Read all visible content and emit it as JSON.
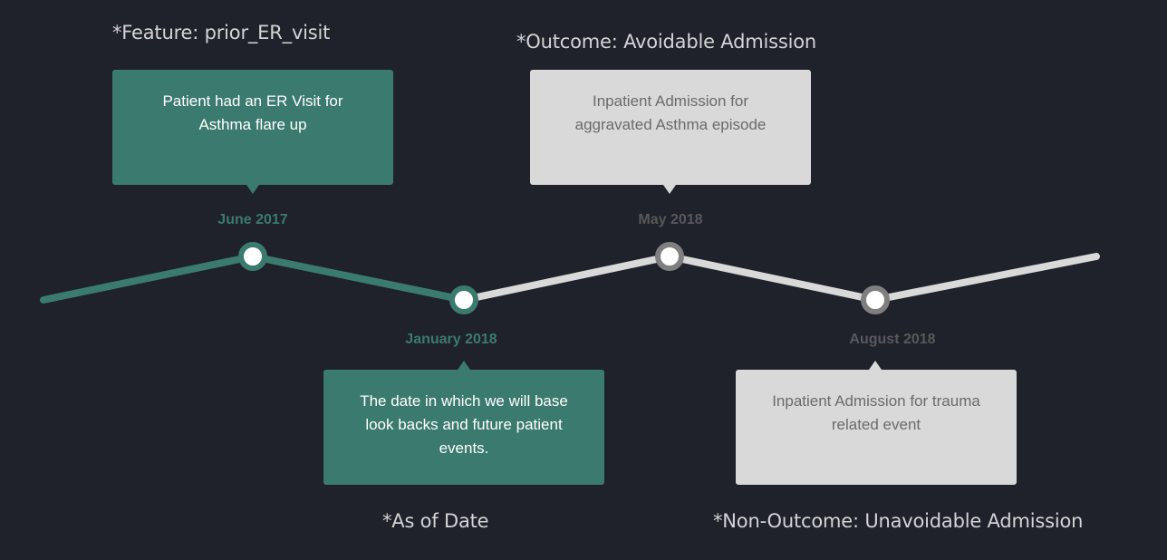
{
  "colors": {
    "background": "#1f212b",
    "active": "#3b7a6e",
    "inactive": "#d9d9d9",
    "node_fill": "#ffffff",
    "inactive_ring": "#7f7f7f",
    "inactive_label": "#595959",
    "active_card_text": "#ffffff",
    "inactive_card_text": "#6b6b6b",
    "footnote": "#d4d4d4"
  },
  "footnotes": {
    "feature": "*Feature: prior_ER_visit",
    "outcome": "*Outcome: Avoidable Admission",
    "as_of": "*As of Date",
    "non_outcome": "*Non-Outcome: Unavoidable Admission"
  },
  "events": [
    {
      "date": "June 2017",
      "description": "Patient had an ER Visit for Asthma flare up",
      "active": true
    },
    {
      "date": "January 2018",
      "description": "The date in which we will base look backs and future patient events.",
      "active": true
    },
    {
      "date": "May 2018",
      "description": "Inpatient Admission for aggravated Asthma episode",
      "active": false
    },
    {
      "date": "August 2018",
      "description": "Inpatient Admission for trauma related event",
      "active": false
    }
  ]
}
